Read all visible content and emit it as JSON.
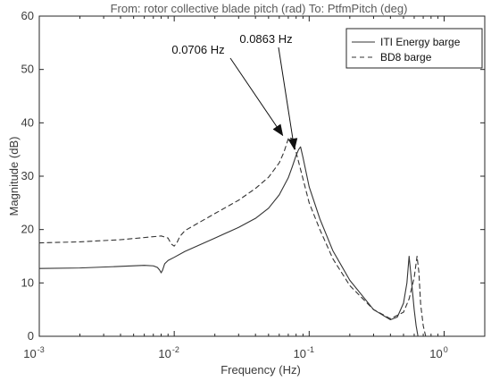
{
  "chart_data": {
    "type": "line",
    "title": "From: rotor collective blade pitch (rad)  To: PtfmPitch (deg)",
    "xlabel": "Frequency  (Hz)",
    "ylabel": "Magnitude (dB)",
    "xscale": "log",
    "xlim": [
      0.001,
      2
    ],
    "ylim": [
      0,
      60
    ],
    "grid": false,
    "legend_position": "top-right",
    "x_ticks": [
      0.001,
      0.01,
      0.1,
      1
    ],
    "x_tick_labels": [
      {
        "base": "10",
        "exp": "-3"
      },
      {
        "base": "10",
        "exp": "-2"
      },
      {
        "base": "10",
        "exp": "-1"
      },
      {
        "base": "10",
        "exp": "0"
      }
    ],
    "y_ticks": [
      0,
      10,
      20,
      30,
      40,
      50,
      60
    ],
    "y_tick_labels": [
      "0",
      "10",
      "20",
      "30",
      "40",
      "50",
      "60"
    ],
    "series": [
      {
        "name": "ITI Energy barge",
        "style": "solid",
        "color": "#333333",
        "x": [
          0.001,
          0.002,
          0.004,
          0.006,
          0.007,
          0.0075,
          0.0078,
          0.008,
          0.0082,
          0.0085,
          0.009,
          0.01,
          0.012,
          0.015,
          0.02,
          0.03,
          0.04,
          0.05,
          0.06,
          0.07,
          0.075,
          0.08,
          0.0835,
          0.0863,
          0.09,
          0.1,
          0.12,
          0.15,
          0.2,
          0.3,
          0.4,
          0.45,
          0.5,
          0.53,
          0.55,
          0.57,
          0.6,
          0.62,
          0.64
        ],
        "y": [
          12.7,
          12.8,
          13.1,
          13.3,
          13.2,
          12.9,
          12.4,
          11.9,
          12.4,
          13.6,
          14.2,
          14.8,
          15.9,
          17.0,
          18.4,
          20.4,
          22.1,
          24.0,
          26.5,
          29.7,
          31.8,
          33.9,
          35.0,
          35.5,
          33.5,
          28.0,
          22.0,
          16.0,
          10.5,
          5.0,
          3.1,
          3.6,
          6.2,
          10.0,
          15.0,
          11.0,
          5.0,
          2.0,
          0.0
        ]
      },
      {
        "name": "BD8 barge",
        "style": "dashed",
        "color": "#333333",
        "x": [
          0.001,
          0.002,
          0.004,
          0.006,
          0.008,
          0.009,
          0.0095,
          0.01,
          0.0105,
          0.011,
          0.012,
          0.015,
          0.02,
          0.03,
          0.04,
          0.05,
          0.06,
          0.065,
          0.0706,
          0.075,
          0.08,
          0.09,
          0.1,
          0.12,
          0.15,
          0.2,
          0.3,
          0.4,
          0.5,
          0.55,
          0.6,
          0.63,
          0.65,
          0.67,
          0.7,
          0.73
        ],
        "y": [
          17.5,
          17.7,
          18.1,
          18.5,
          18.8,
          18.4,
          17.3,
          16.9,
          17.6,
          18.7,
          19.8,
          21.2,
          23.0,
          25.5,
          27.7,
          29.8,
          32.5,
          34.5,
          37.3,
          37.0,
          34.5,
          29.5,
          25.0,
          20.0,
          14.5,
          9.5,
          5.0,
          3.3,
          4.5,
          7.0,
          11.0,
          15.0,
          12.0,
          6.0,
          2.0,
          0.0
        ]
      }
    ],
    "annotations": [
      {
        "text": "0.0706 Hz",
        "target_x": 0.0638,
        "target_y": 37.6
      },
      {
        "text": "0.0863 Hz",
        "target_x": 0.0778,
        "target_y": 35.0
      }
    ]
  }
}
